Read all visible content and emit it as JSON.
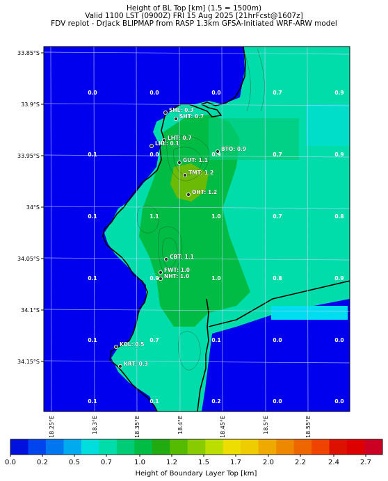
{
  "header": {
    "line1": "Height of BL Top [km] (1.5 = 1500m)",
    "line2": "Valid 1100 LST (0900Z) FRI 15 Aug 2025 [21hrFcst@1607z]",
    "line3": "FDV replot - DrJack BLIPMAP from RASP 1.3km GFSA-Initiated WRF-ARW model"
  },
  "map": {
    "lat_ticks": [
      "33.85°S",
      "33.9°S",
      "33.95°S",
      "34°S",
      "34.05°S",
      "34.1°S",
      "34.15°S"
    ],
    "lon_ticks": [
      "18.25°E",
      "18.3°E",
      "18.35°E",
      "18.4°E",
      "18.45°E",
      "18.5°E",
      "18.55°E"
    ],
    "lat_range": [
      -34.199,
      -33.844
    ],
    "lon_range": [
      18.236,
      18.605
    ],
    "ocean_color": "#0000ee",
    "grid_values": [
      [
        "0.0",
        "0.0",
        "0.0",
        "0.7",
        "0.9"
      ],
      [
        "0.1",
        "0.0",
        "0.9",
        "0.7",
        "0.9"
      ],
      [
        "0.1",
        "1.1",
        "1.0",
        "0.7",
        "0.8"
      ],
      [
        "0.1",
        "0.9",
        "1.0",
        "0.8",
        "0.9"
      ],
      [
        "0.1",
        "0.7",
        "0.1",
        "0.0",
        "0.0"
      ],
      [
        "0.1",
        "0.1",
        "0.2",
        "0.0",
        "0.0"
      ]
    ],
    "stations": [
      {
        "code": "SHL",
        "value": "0.3",
        "text": "SHL: 0.3"
      },
      {
        "code": "SHT",
        "value": "0.7",
        "text": "SHT: 0.7"
      },
      {
        "code": "LHT",
        "value": "0.7",
        "text": "LHT: 0.7"
      },
      {
        "code": "LHL",
        "value": "0.1",
        "text": "LHL: 0.1"
      },
      {
        "code": "BTO",
        "value": "0.9",
        "text": "BTO: 0.9"
      },
      {
        "code": "GUT",
        "value": "1.1",
        "text": "GUT: 1.1"
      },
      {
        "code": "TMT",
        "value": "1.2",
        "text": "TMT: 1.2"
      },
      {
        "code": "OHT",
        "value": "1.2",
        "text": "OHT: 1.2"
      },
      {
        "code": "CBT",
        "value": "1.1",
        "text": "CBT: 1.1"
      },
      {
        "code": "FWT",
        "value": "1.0",
        "text": "FWT: 1.0"
      },
      {
        "code": "NHT",
        "value": "1.0",
        "text": "NHT: 1.0"
      },
      {
        "code": "KOL",
        "value": "0.5",
        "text": "KOL: 0.5"
      },
      {
        "code": "KRT",
        "value": "0.3",
        "text": "KRT: 0.3"
      }
    ]
  },
  "colorbar": {
    "title": "Height of Boundary Layer Top [km]",
    "tick_labels": [
      "0.0",
      "0.2",
      "0.5",
      "0.7",
      "1.0",
      "1.2",
      "1.5",
      "1.7",
      "2.0",
      "2.2",
      "2.4",
      "2.7"
    ],
    "colors": [
      "#0011dd",
      "#0044ee",
      "#0077ee",
      "#00aaee",
      "#00dddd",
      "#00ddaa",
      "#00cc77",
      "#00bb44",
      "#22aa11",
      "#55bb00",
      "#88cc00",
      "#bbdd00",
      "#eedd00",
      "#eecc00",
      "#eeaa00",
      "#ee8800",
      "#ee6600",
      "#ee4400",
      "#dd1100",
      "#dd0000",
      "#cc0022"
    ]
  }
}
